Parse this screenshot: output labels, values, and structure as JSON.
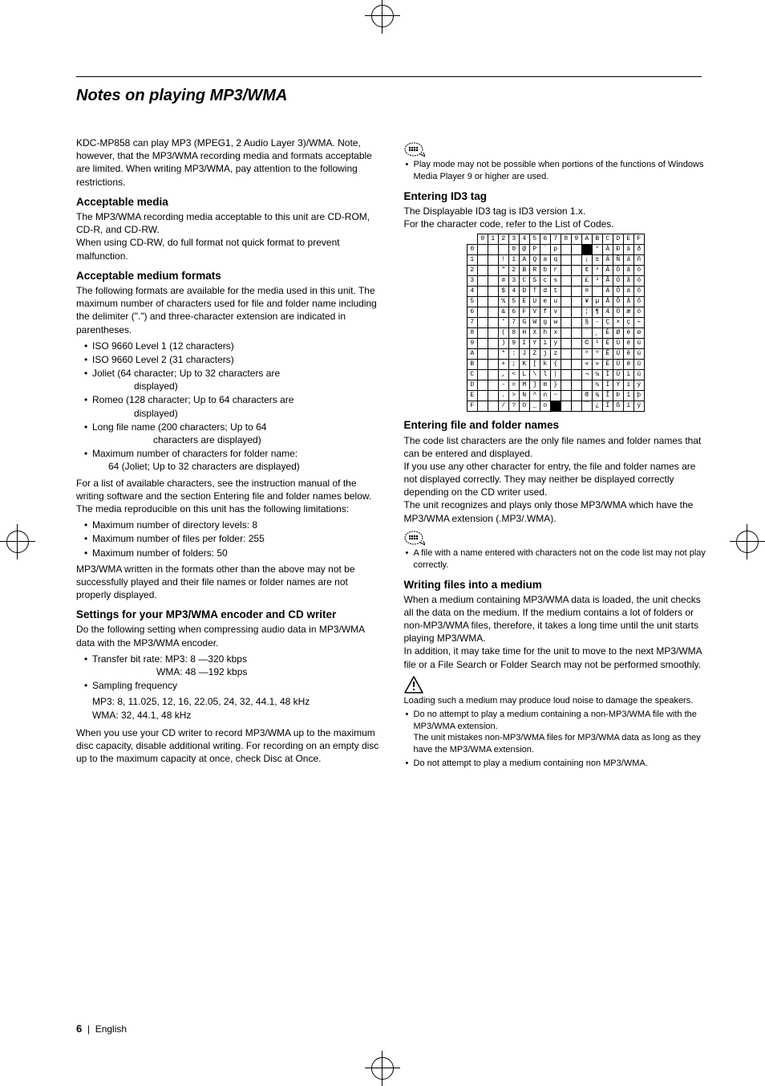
{
  "page": {
    "title": "Notes on playing MP3/WMA",
    "footer_num": "6",
    "footer_lang": "English"
  },
  "left": {
    "intro": "KDC-MP858 can play MP3 (MPEG1, 2 Audio Layer 3)/WMA. Note, however, that the MP3/WMA recording media and formats acceptable are limited. When writing MP3/WMA, pay attention to the following restrictions.",
    "h_media": "Acceptable media",
    "media_p": "The MP3/WMA recording media acceptable to this unit are CD-ROM, CD-R, and CD-RW.\nWhen using CD-RW, do full format not quick format to prevent malfunction.",
    "h_formats": "Acceptable medium formats",
    "formats_p": "The following formats are available for the media used in this unit. The maximum number of characters used for file and folder name including the delimiter (\".\") and three-character extension are indicated in parentheses.",
    "formats_items": [
      "ISO 9660 Level 1 (12 characters)",
      "ISO 9660 Level 2 (31 characters)",
      "Joliet (64 character; Up to 32 characters are",
      "Romeo (128 character; Up to 64 characters are",
      "Long file name (200 characters; Up to 64",
      "Maximum number of characters for folder name:"
    ],
    "formats_sub3": "displayed)",
    "formats_sub4": "displayed)",
    "formats_sub5": "characters are displayed)",
    "formats_sub6": "64 (Joliet; Up to 32 characters are displayed)",
    "formats_p2": "For a list of available characters, see the instruction manual of the writing software and the section Entering file and folder names below.\nThe media reproducible on this unit has the following limitations:",
    "limits_items": [
      "Maximum number of directory levels:  8",
      "Maximum number of files per folder:  255",
      "Maximum number of folders:  50"
    ],
    "formats_p3": "MP3/WMA written in the formats other than the above may not be successfully played and their file names or folder names are not properly displayed.",
    "h_settings": "Settings for your MP3/WMA encoder and CD writer",
    "settings_p": "Do the following setting when compressing audio data in MP3/WMA data with the MP3/WMA encoder.",
    "settings_items": [
      "Transfer bit rate: MP3: 8 —320 kbps",
      "Sampling frequency"
    ],
    "settings_sub1": "WMA: 48 —192 kbps",
    "settings_freq1": "MP3: 8, 11.025, 12, 16, 22.05, 24, 32, 44.1, 48 kHz",
    "settings_freq2": "WMA: 32, 44.1, 48 kHz",
    "settings_p2": "When you use your CD writer to record MP3/WMA up to the maximum disc capacity, disable additional writing. For recording on an empty disc up to the maximum capacity at once, check Disc at Once."
  },
  "right": {
    "note1": "Play mode may not be possible when portions of the functions of Windows Media Player 9 or higher are used.",
    "h_id3": "Entering ID3 tag",
    "id3_p": "The Displayable ID3 tag is ID3 version 1.x.\nFor the character code, refer to the List of Codes.",
    "code_table": {
      "col_headers": [
        "0",
        "1",
        "2",
        "3",
        "4",
        "5",
        "6",
        "7",
        "8",
        "9",
        "A",
        "B",
        "C",
        "D",
        "E",
        "F"
      ],
      "row_headers": [
        "0",
        "1",
        "2",
        "3",
        "4",
        "5",
        "6",
        "7",
        "8",
        "9",
        "A",
        "B",
        "C",
        "D",
        "E",
        "F"
      ],
      "cells": [
        [
          "",
          "",
          "",
          "0",
          "@",
          "P",
          "`",
          "p",
          "",
          "",
          "█",
          "°",
          "À",
          "Ð",
          "à",
          "ð"
        ],
        [
          "",
          "",
          "!",
          "1",
          "A",
          "Q",
          "a",
          "q",
          "",
          "",
          "¡",
          "±",
          "Á",
          "Ñ",
          "á",
          "ñ"
        ],
        [
          "",
          "",
          "\"",
          "2",
          "B",
          "R",
          "b",
          "r",
          "",
          "",
          "¢",
          "²",
          "Â",
          "Ò",
          "â",
          "ò"
        ],
        [
          "",
          "",
          "#",
          "3",
          "C",
          "S",
          "c",
          "s",
          "",
          "",
          "£",
          "³",
          "Ã",
          "Ó",
          "ã",
          "ó"
        ],
        [
          "",
          "",
          "$",
          "4",
          "D",
          "T",
          "d",
          "t",
          "",
          "",
          "¤",
          "´",
          "Ä",
          "Ô",
          "ä",
          "ô"
        ],
        [
          "",
          "",
          "%",
          "5",
          "E",
          "U",
          "e",
          "u",
          "",
          "",
          "¥",
          "µ",
          "Å",
          "Õ",
          "å",
          "õ"
        ],
        [
          "",
          "",
          "&",
          "6",
          "F",
          "V",
          "f",
          "v",
          "",
          "",
          "¦",
          "¶",
          "Æ",
          "Ö",
          "æ",
          "ö"
        ],
        [
          "",
          "",
          "'",
          "7",
          "G",
          "W",
          "g",
          "w",
          "",
          "",
          "§",
          "·",
          "Ç",
          "×",
          "ç",
          "÷"
        ],
        [
          "",
          "",
          "(",
          "8",
          "H",
          "X",
          "h",
          "x",
          "",
          "",
          "¨",
          "¸",
          "È",
          "Ø",
          "è",
          "ø"
        ],
        [
          "",
          "",
          ")",
          "9",
          "I",
          "Y",
          "i",
          "y",
          "",
          "",
          "©",
          "¹",
          "É",
          "Ù",
          "é",
          "ù"
        ],
        [
          "",
          "",
          "*",
          ":",
          "J",
          "Z",
          "j",
          "z",
          "",
          "",
          "ª",
          "º",
          "Ê",
          "Ú",
          "ê",
          "ú"
        ],
        [
          "",
          "",
          "+",
          ";",
          "K",
          "[",
          "k",
          "{",
          "",
          "",
          "«",
          "»",
          "Ë",
          "Û",
          "ë",
          "û"
        ],
        [
          "",
          "",
          ",",
          "<",
          "L",
          "\\",
          "l",
          "|",
          "",
          "",
          "¬",
          "¼",
          "Ì",
          "Ü",
          "ì",
          "ü"
        ],
        [
          "",
          "",
          "-",
          "=",
          "M",
          "]",
          "m",
          "}",
          "",
          "",
          "­",
          "½",
          "Í",
          "Ý",
          "í",
          "ý"
        ],
        [
          "",
          "",
          ".",
          ">",
          "N",
          "^",
          "n",
          "~",
          "",
          "",
          "®",
          "¾",
          "Î",
          "Þ",
          "î",
          "þ"
        ],
        [
          "",
          "",
          "/",
          "?",
          "O",
          "_",
          "o",
          "█",
          "",
          "",
          "¯",
          "¿",
          "Ï",
          "ß",
          "ï",
          "ÿ"
        ]
      ]
    },
    "h_names": "Entering file and folder names",
    "names_p": "The code list characters are the only file names and folder names that can be entered and displayed.\nIf you use any other character for entry, the file and folder names are not displayed correctly. They may neither be displayed correctly depending on the CD writer used.\nThe unit recognizes and plays only those MP3/WMA which have the MP3/WMA extension (.MP3/.WMA).",
    "note2": "A file with a name entered with characters not on the code list may not play correctly.",
    "h_writing": "Writing files into a medium",
    "writing_p": "When a medium containing MP3/WMA data is loaded, the unit checks all the data on the medium. If the medium contains a lot of folders or non-MP3/WMA files, therefore, it takes a long time until the unit starts playing MP3/WMA.\nIn addition, it may take time for the unit to move to the next MP3/WMA file or a File Search or Folder Search may not be performed smoothly.",
    "warn_p": "Loading such a medium may produce loud noise to damage the speakers.",
    "warn_items": [
      "Do no attempt to play a medium containing a non-MP3/WMA file with the MP3/WMA extension.\nThe unit mistakes non-MP3/WMA files for MP3/WMA data as long as they have the MP3/WMA extension.",
      "Do not attempt to play a medium containing non MP3/WMA."
    ]
  }
}
